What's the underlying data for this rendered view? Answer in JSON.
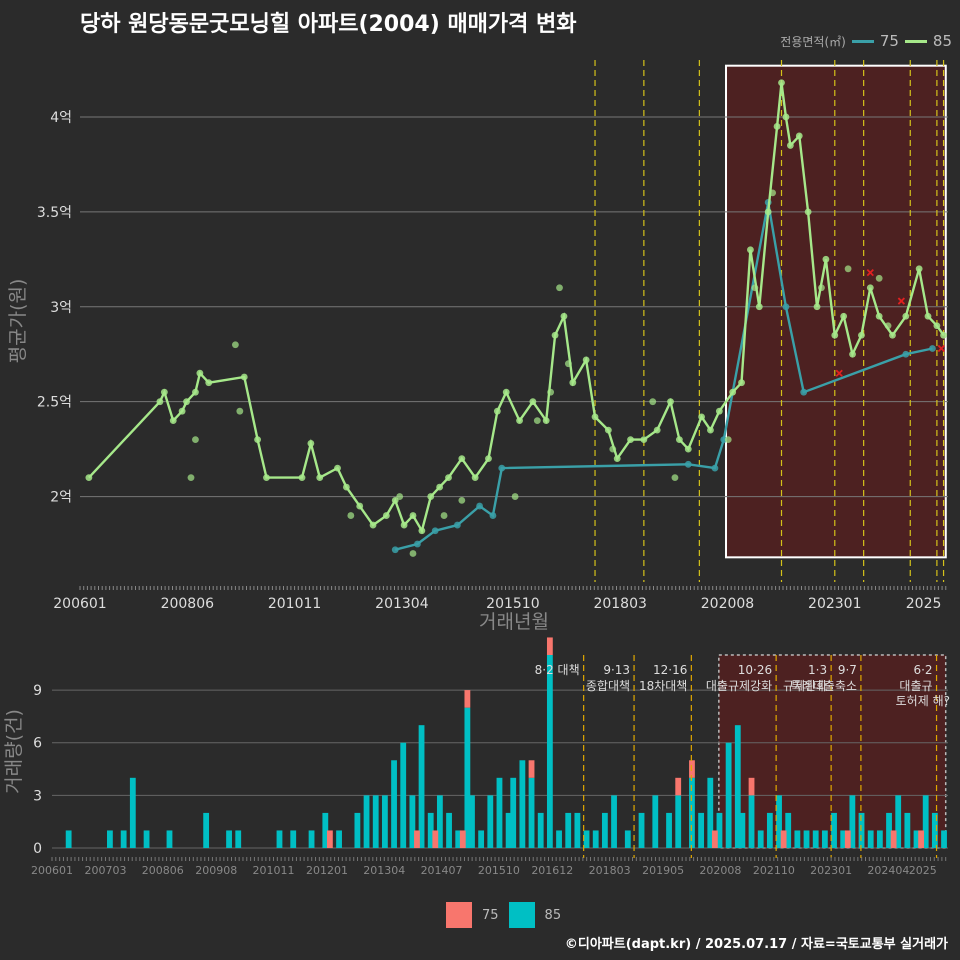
{
  "title": "당하 원당동문굿모닝힐 아파트(2004) 매매가격 변화",
  "legend": {
    "title": "전용면적(㎡)",
    "items": [
      {
        "label": "75",
        "color": "#3aa0a8"
      },
      {
        "label": "85",
        "color": "#a6e88a"
      }
    ]
  },
  "bar_legend": [
    {
      "label": "75",
      "color": "#f8766d"
    },
    {
      "label": "85",
      "color": "#00bfc4"
    }
  ],
  "footer": "©디아파트(dapt.kr) / 2025.07.17 / 자료=국토교통부 실거래가",
  "chart_data": [
    {
      "type": "line",
      "title": "당하 원당동문굿모닝힐 아파트(2004) 매매가격 변화",
      "xlabel": "거래년월",
      "ylabel": "평균가(원)",
      "x_ticks": [
        "200601",
        "200806",
        "201011",
        "201304",
        "201510",
        "201803",
        "202008",
        "202301",
        "2025"
      ],
      "y_ticks": [
        "2억",
        "2.5억",
        "3억",
        "3.5억",
        "4억"
      ],
      "y_tick_values": [
        2.0,
        2.5,
        3.0,
        3.5,
        4.0
      ],
      "ylim": [
        1.55,
        4.3
      ],
      "xlim": [
        2006.0,
        2025.55
      ],
      "policy_lines": [
        2017.6,
        2018.7,
        2019.95,
        2021.8,
        2023.0,
        2023.65,
        2024.7,
        2025.3,
        2025.45
      ],
      "highlight": {
        "x_start": 2020.55,
        "x_end": 2025.5
      },
      "series": [
        {
          "name": "85",
          "color": "#a6e88a",
          "points": [
            [
              2006.2,
              2.1
            ],
            [
              2007.8,
              2.5
            ],
            [
              2007.9,
              2.55
            ],
            [
              2008.1,
              2.4
            ],
            [
              2008.3,
              2.45
            ],
            [
              2008.4,
              2.5
            ],
            [
              2008.6,
              2.55
            ],
            [
              2008.7,
              2.65
            ],
            [
              2008.9,
              2.6
            ],
            [
              2009.7,
              2.63
            ],
            [
              2010.0,
              2.3
            ],
            [
              2010.2,
              2.1
            ],
            [
              2011.0,
              2.1
            ],
            [
              2011.2,
              2.28
            ],
            [
              2011.4,
              2.1
            ],
            [
              2011.8,
              2.15
            ],
            [
              2012.0,
              2.05
            ],
            [
              2012.3,
              1.95
            ],
            [
              2012.6,
              1.85
            ],
            [
              2012.9,
              1.9
            ],
            [
              2013.1,
              1.98
            ],
            [
              2013.3,
              1.85
            ],
            [
              2013.5,
              1.9
            ],
            [
              2013.7,
              1.82
            ],
            [
              2013.9,
              2.0
            ],
            [
              2014.1,
              2.05
            ],
            [
              2014.3,
              2.1
            ],
            [
              2014.6,
              2.2
            ],
            [
              2014.9,
              2.1
            ],
            [
              2015.2,
              2.2
            ],
            [
              2015.4,
              2.45
            ],
            [
              2015.6,
              2.55
            ],
            [
              2015.9,
              2.4
            ],
            [
              2016.2,
              2.5
            ],
            [
              2016.5,
              2.4
            ],
            [
              2016.7,
              2.85
            ],
            [
              2016.9,
              2.95
            ],
            [
              2017.1,
              2.6
            ],
            [
              2017.4,
              2.72
            ],
            [
              2017.6,
              2.42
            ],
            [
              2017.9,
              2.35
            ],
            [
              2018.1,
              2.2
            ],
            [
              2018.4,
              2.3
            ],
            [
              2018.7,
              2.3
            ],
            [
              2019.0,
              2.35
            ],
            [
              2019.3,
              2.5
            ],
            [
              2019.5,
              2.3
            ],
            [
              2019.7,
              2.25
            ],
            [
              2020.0,
              2.42
            ],
            [
              2020.2,
              2.35
            ],
            [
              2020.4,
              2.45
            ],
            [
              2020.7,
              2.55
            ],
            [
              2020.9,
              2.6
            ],
            [
              2021.1,
              3.3
            ],
            [
              2021.3,
              3.0
            ],
            [
              2021.5,
              3.5
            ],
            [
              2021.7,
              3.95
            ],
            [
              2021.8,
              4.18
            ],
            [
              2021.9,
              4.0
            ],
            [
              2022.0,
              3.85
            ],
            [
              2022.2,
              3.9
            ],
            [
              2022.4,
              3.5
            ],
            [
              2022.6,
              3.0
            ],
            [
              2022.8,
              3.25
            ],
            [
              2023.0,
              2.85
            ],
            [
              2023.2,
              2.95
            ],
            [
              2023.4,
              2.75
            ],
            [
              2023.6,
              2.85
            ],
            [
              2023.8,
              3.1
            ],
            [
              2024.0,
              2.95
            ],
            [
              2024.3,
              2.85
            ],
            [
              2024.6,
              2.95
            ],
            [
              2024.9,
              3.2
            ],
            [
              2025.1,
              2.95
            ],
            [
              2025.3,
              2.9
            ],
            [
              2025.45,
              2.85
            ]
          ]
        },
        {
          "name": "75",
          "color": "#3aa0a8",
          "points": [
            [
              2013.1,
              1.72
            ],
            [
              2013.6,
              1.75
            ],
            [
              2014.0,
              1.82
            ],
            [
              2014.5,
              1.85
            ],
            [
              2015.0,
              1.95
            ],
            [
              2015.3,
              1.9
            ],
            [
              2015.5,
              2.15
            ],
            [
              2019.7,
              2.17
            ],
            [
              2020.3,
              2.15
            ],
            [
              2020.5,
              2.3
            ],
            [
              2021.5,
              3.55
            ],
            [
              2021.9,
              3.0
            ],
            [
              2022.3,
              2.55
            ],
            [
              2024.6,
              2.75
            ],
            [
              2025.2,
              2.78
            ]
          ]
        }
      ],
      "extra_points_85": [
        [
          2008.5,
          2.1
        ],
        [
          2008.6,
          2.3
        ],
        [
          2009.5,
          2.8
        ],
        [
          2009.6,
          2.45
        ],
        [
          2012.1,
          1.9
        ],
        [
          2013.2,
          2.0
        ],
        [
          2013.5,
          1.7
        ],
        [
          2014.2,
          1.9
        ],
        [
          2014.6,
          1.98
        ],
        [
          2015.8,
          2.0
        ],
        [
          2016.3,
          2.4
        ],
        [
          2016.6,
          2.55
        ],
        [
          2016.8,
          3.1
        ],
        [
          2017.0,
          2.7
        ],
        [
          2018.0,
          2.25
        ],
        [
          2018.9,
          2.5
        ],
        [
          2019.4,
          2.1
        ],
        [
          2020.6,
          2.3
        ],
        [
          2021.2,
          3.1
        ],
        [
          2021.6,
          3.6
        ],
        [
          2022.7,
          3.1
        ],
        [
          2023.3,
          3.2
        ],
        [
          2024.0,
          3.15
        ],
        [
          2024.2,
          2.9
        ]
      ],
      "cancelled_marks": [
        [
          2023.1,
          2.65
        ],
        [
          2023.8,
          3.18
        ],
        [
          2024.5,
          3.03
        ],
        [
          2025.4,
          2.78
        ]
      ]
    },
    {
      "type": "bar",
      "ylabel": "거래량(건)",
      "y_ticks": [
        "0",
        "3",
        "6",
        "9"
      ],
      "y_tick_values": [
        0,
        3,
        6,
        9
      ],
      "ylim": [
        0,
        11
      ],
      "x_ticks": [
        "200601",
        "200703",
        "200806",
        "200908",
        "201011",
        "201201",
        "201304",
        "201407",
        "201510",
        "201612",
        "201803",
        "201905",
        "202008",
        "202110",
        "202301",
        "202404",
        "2025"
      ],
      "policy_annotations": [
        {
          "x": 2017.6,
          "date": "8·2 대책",
          "label": ""
        },
        {
          "x": 2018.7,
          "date": "9·13",
          "label": "종합대책"
        },
        {
          "x": 2019.95,
          "date": "12·16",
          "label": "18차대책"
        },
        {
          "x": 2021.8,
          "date": "10·26",
          "label": "대출규제강화"
        },
        {
          "x": 2023.0,
          "date": "1·3",
          "label": "규제완화"
        },
        {
          "x": 2023.65,
          "date": "9·7",
          "label": "특례대출축소"
        },
        {
          "x": 2025.3,
          "date": "6·2",
          "label": "대출규"
        }
      ],
      "extra_annotation": "토허제 해?",
      "months": [
        2006.0,
        2025.55
      ],
      "series": [
        {
          "name": "75",
          "color": "#f8766d",
          "bars": [
            [
              2012.0,
              1
            ],
            [
              2013.9,
              1
            ],
            [
              2014.3,
              1
            ],
            [
              2014.9,
              1
            ],
            [
              2015.0,
              1
            ],
            [
              2016.4,
              1
            ],
            [
              2016.8,
              1
            ],
            [
              2019.6,
              1
            ],
            [
              2019.9,
              1
            ],
            [
              2020.4,
              1
            ],
            [
              2021.2,
              1
            ],
            [
              2021.9,
              1
            ],
            [
              2023.3,
              1
            ],
            [
              2024.3,
              1
            ],
            [
              2024.9,
              1
            ]
          ]
        },
        {
          "name": "85",
          "color": "#00bfc4",
          "bars": [
            [
              2006.3,
              1
            ],
            [
              2007.2,
              1
            ],
            [
              2007.5,
              1
            ],
            [
              2007.7,
              4
            ],
            [
              2008.0,
              1
            ],
            [
              2008.5,
              1
            ],
            [
              2009.3,
              2
            ],
            [
              2009.8,
              1
            ],
            [
              2010.0,
              1
            ],
            [
              2010.9,
              1
            ],
            [
              2011.2,
              1
            ],
            [
              2011.6,
              1
            ],
            [
              2011.9,
              2
            ],
            [
              2012.2,
              1
            ],
            [
              2012.6,
              2
            ],
            [
              2012.8,
              3
            ],
            [
              2013.0,
              3
            ],
            [
              2013.2,
              3
            ],
            [
              2013.4,
              5
            ],
            [
              2013.6,
              6
            ],
            [
              2013.8,
              3
            ],
            [
              2014.0,
              7
            ],
            [
              2014.2,
              2
            ],
            [
              2014.4,
              3
            ],
            [
              2014.6,
              2
            ],
            [
              2014.8,
              1
            ],
            [
              2015.0,
              8
            ],
            [
              2015.1,
              3
            ],
            [
              2015.3,
              1
            ],
            [
              2015.5,
              3
            ],
            [
              2015.7,
              4
            ],
            [
              2015.9,
              2
            ],
            [
              2016.0,
              4
            ],
            [
              2016.2,
              5
            ],
            [
              2016.4,
              4
            ],
            [
              2016.6,
              2
            ],
            [
              2016.8,
              11
            ],
            [
              2017.0,
              1
            ],
            [
              2017.2,
              2
            ],
            [
              2017.4,
              2
            ],
            [
              2017.6,
              1
            ],
            [
              2017.8,
              1
            ],
            [
              2018.0,
              2
            ],
            [
              2018.2,
              3
            ],
            [
              2018.5,
              1
            ],
            [
              2018.8,
              2
            ],
            [
              2019.1,
              3
            ],
            [
              2019.4,
              2
            ],
            [
              2019.6,
              3
            ],
            [
              2019.9,
              4
            ],
            [
              2020.1,
              2
            ],
            [
              2020.3,
              4
            ],
            [
              2020.5,
              2
            ],
            [
              2020.7,
              6
            ],
            [
              2020.9,
              7
            ],
            [
              2021.0,
              2
            ],
            [
              2021.2,
              3
            ],
            [
              2021.4,
              1
            ],
            [
              2021.6,
              2
            ],
            [
              2021.8,
              3
            ],
            [
              2022.0,
              2
            ],
            [
              2022.2,
              1
            ],
            [
              2022.4,
              1
            ],
            [
              2022.6,
              1
            ],
            [
              2022.8,
              1
            ],
            [
              2023.0,
              2
            ],
            [
              2023.2,
              1
            ],
            [
              2023.4,
              3
            ],
            [
              2023.6,
              2
            ],
            [
              2023.8,
              1
            ],
            [
              2024.0,
              1
            ],
            [
              2024.2,
              2
            ],
            [
              2024.4,
              3
            ],
            [
              2024.6,
              2
            ],
            [
              2024.8,
              1
            ],
            [
              2025.0,
              3
            ],
            [
              2025.2,
              2
            ],
            [
              2025.4,
              1
            ]
          ]
        }
      ]
    }
  ]
}
